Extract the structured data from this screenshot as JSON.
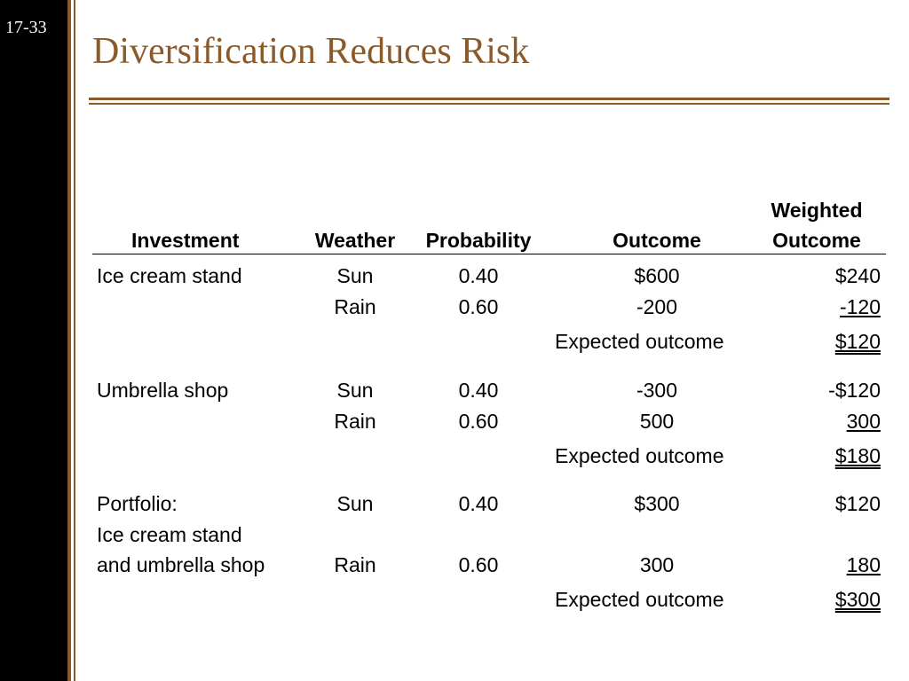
{
  "slide": {
    "number": "17-33",
    "title": "Diversification Reduces Risk"
  },
  "table": {
    "headers": {
      "investment": "Investment",
      "weather": "Weather",
      "probability": "Probability",
      "outcome": "Outcome",
      "weighted_line1": "Weighted",
      "weighted_line2": "Outcome"
    },
    "groups": [
      {
        "investment": [
          "Ice cream stand"
        ],
        "rows": [
          {
            "weather": "Sun",
            "probability": "0.40",
            "outcome": "$600",
            "weighted": "$240"
          },
          {
            "weather": "Rain",
            "probability": "0.60",
            "outcome": "-200",
            "weighted": "-120"
          }
        ],
        "expected_label": "Expected outcome",
        "expected_value": "$120"
      },
      {
        "investment": [
          "Umbrella shop"
        ],
        "rows": [
          {
            "weather": "Sun",
            "probability": "0.40",
            "outcome": "-300",
            "weighted": "-$120"
          },
          {
            "weather": "Rain",
            "probability": "0.60",
            "outcome": "500",
            "weighted": "300"
          }
        ],
        "expected_label": "Expected outcome",
        "expected_value": "$180"
      },
      {
        "investment": [
          "Portfolio:",
          "Ice cream stand",
          "and umbrella shop"
        ],
        "rows": [
          {
            "weather": "Sun",
            "probability": "0.40",
            "outcome": "$300",
            "weighted": "$120"
          },
          {
            "weather": "Rain",
            "probability": "0.60",
            "outcome": "300",
            "weighted": "180"
          }
        ],
        "expected_label": "Expected outcome",
        "expected_value": "$300"
      }
    ]
  },
  "colors": {
    "accent": "#8b5a2b",
    "left_bar": "#000000"
  }
}
